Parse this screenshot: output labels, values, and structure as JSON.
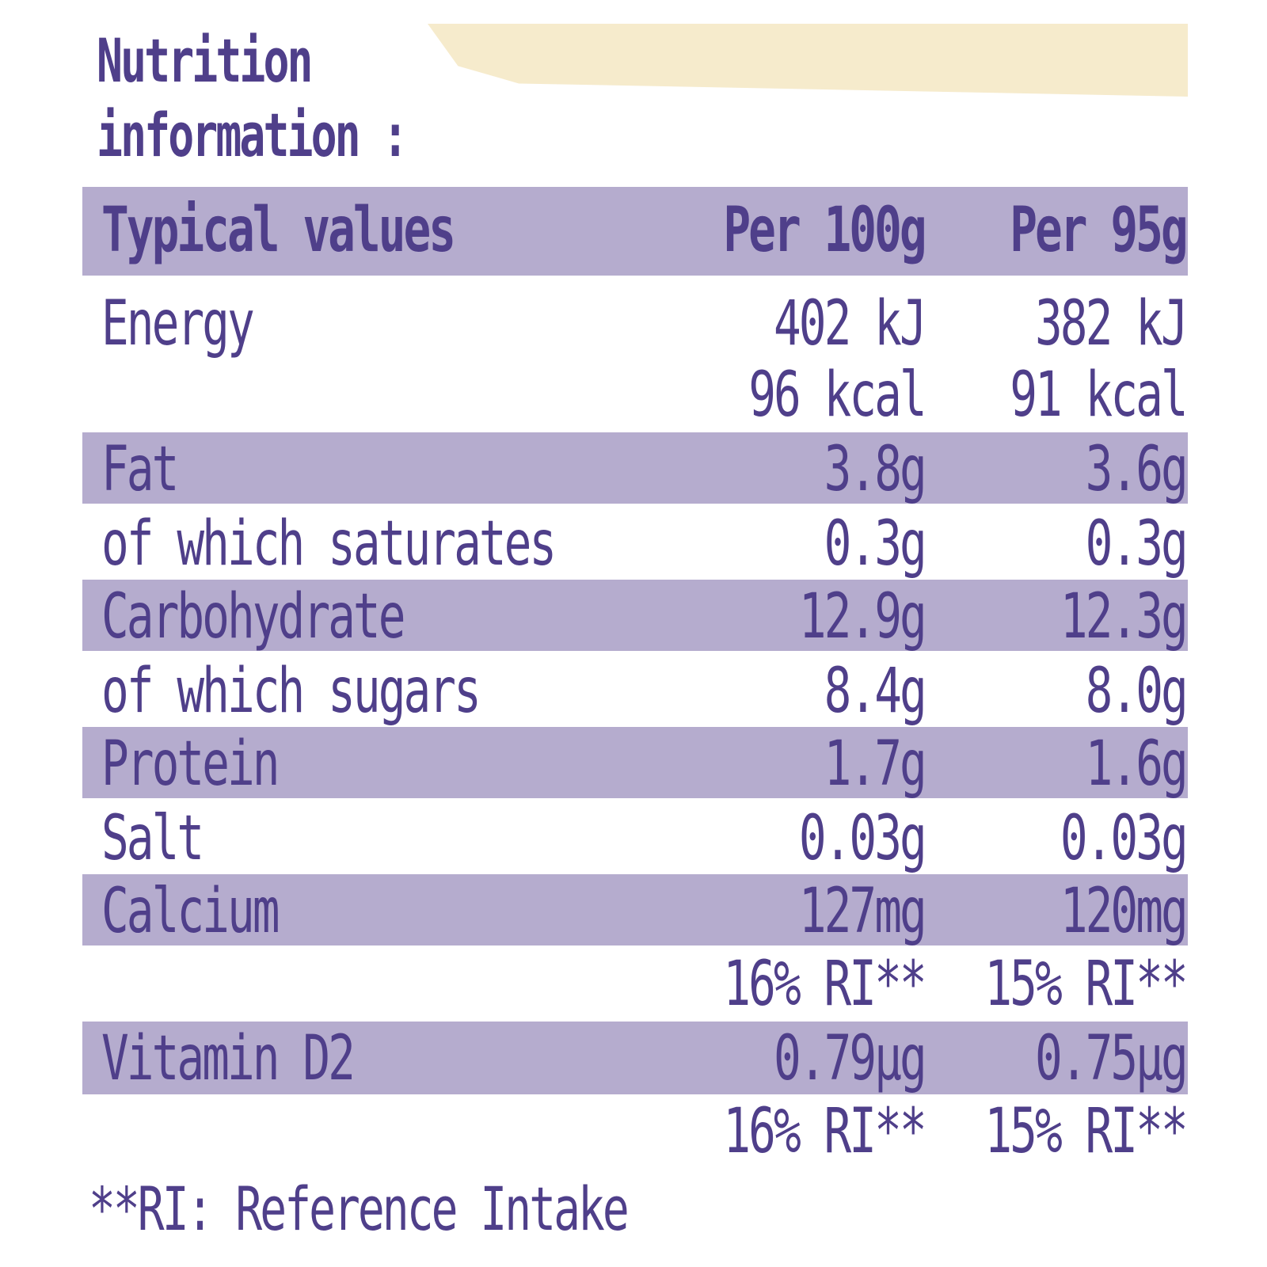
{
  "title": {
    "line1": "Nutrition",
    "line2": "information :"
  },
  "table": {
    "header": {
      "label": "Typical values",
      "col1": "Per 100g",
      "col2": "Per 95g"
    },
    "rows": [
      {
        "label": "Energy",
        "v1": "402 kJ",
        "v2": "382 kJ"
      },
      {
        "label": "",
        "v1": "96 kcal",
        "v2": "91 kcal"
      },
      {
        "label": "Fat",
        "v1": "3.8g",
        "v2": "3.6g"
      },
      {
        "label": "of which saturates",
        "v1": "0.3g",
        "v2": "0.3g"
      },
      {
        "label": "Carbohydrate",
        "v1": "12.9g",
        "v2": "12.3g"
      },
      {
        "label": "of which sugars",
        "v1": "8.4g",
        "v2": "8.0g"
      },
      {
        "label": "Protein",
        "v1": "1.7g",
        "v2": "1.6g"
      },
      {
        "label": "Salt",
        "v1": "0.03g",
        "v2": "0.03g"
      },
      {
        "label": "Calcium",
        "v1": "127mg",
        "v2": "120mg"
      },
      {
        "label": "",
        "v1": "16% RI**",
        "v2": "15% RI**"
      },
      {
        "label": "Vitamin D2",
        "v1": "0.79µg",
        "v2": "0.75µg"
      },
      {
        "label": "",
        "v1": "16% RI**",
        "v2": "15% RI**"
      }
    ]
  },
  "footnote": "**RI: Reference Intake",
  "colors": {
    "text": "#4f3f8a",
    "band": "#b5acce",
    "accent_bar": "#f6ebcc"
  }
}
